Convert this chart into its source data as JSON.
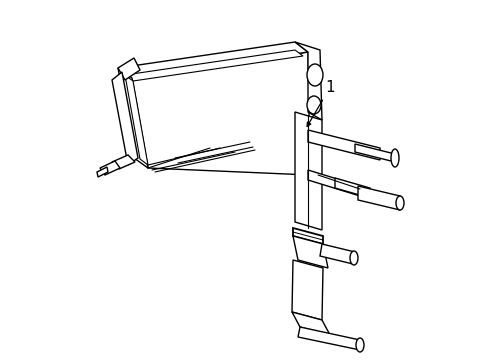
{
  "bg_color": "#ffffff",
  "line_color": "#000000",
  "lw": 1.0,
  "label": "1",
  "figsize": [
    4.89,
    3.6
  ],
  "dpi": 100
}
